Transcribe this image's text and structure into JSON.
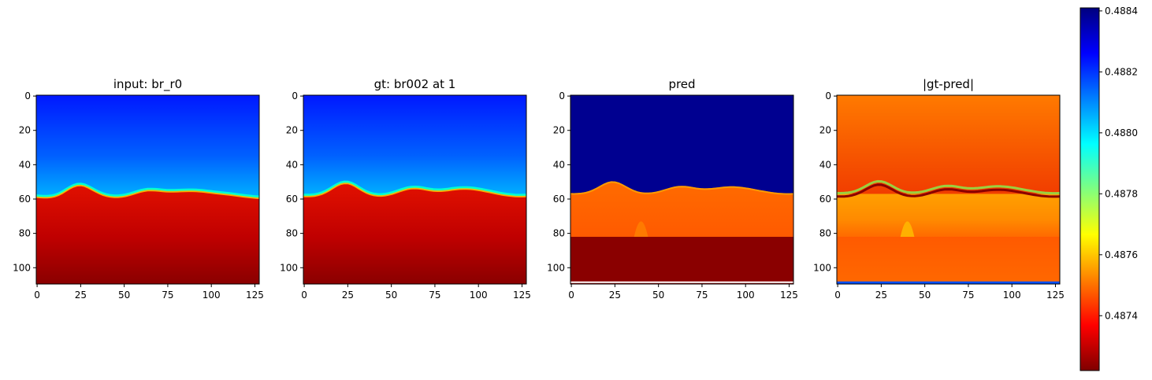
{
  "chart_data": [
    {
      "type": "heatmap",
      "title": "input: br_r0",
      "xlim": [
        0,
        127
      ],
      "ylim": [
        109,
        0
      ],
      "x_ticks": [
        "0",
        "25",
        "50",
        "75",
        "100",
        "125"
      ],
      "y_ticks": [
        "0",
        "20",
        "40",
        "60",
        "80",
        "100"
      ],
      "description_values": {
        "interface_row_approx": 58,
        "top_region_value": 0.4882,
        "bottom_region_value": 0.4873
      }
    },
    {
      "type": "heatmap",
      "title": "gt: br002 at 1",
      "xlim": [
        0,
        127
      ],
      "ylim": [
        109,
        0
      ],
      "x_ticks": [
        "0",
        "25",
        "50",
        "75",
        "100",
        "125"
      ],
      "y_ticks": [
        "0",
        "20",
        "40",
        "60",
        "80",
        "100"
      ],
      "description_values": {
        "interface_row_approx": 57,
        "top_region_value": 0.4882,
        "bottom_region_value": 0.4873
      }
    },
    {
      "type": "heatmap",
      "title": "pred",
      "xlim": [
        0,
        127
      ],
      "ylim": [
        109,
        0
      ],
      "x_ticks": [
        "0",
        "25",
        "50",
        "75",
        "100",
        "125"
      ],
      "y_ticks": [
        "0",
        "20",
        "40",
        "60",
        "80",
        "100"
      ],
      "description_values": {
        "interface_row_approx": 56,
        "top_region_value": 0.4884,
        "middle_region_value": 0.4875,
        "bottom_region_value": 0.4872
      }
    },
    {
      "type": "heatmap",
      "title": "|gt-pred|",
      "xlim": [
        0,
        127
      ],
      "ylim": [
        109,
        0
      ],
      "x_ticks": [
        "0",
        "25",
        "50",
        "75",
        "100",
        "125"
      ],
      "y_ticks": [
        "0",
        "20",
        "40",
        "60",
        "80",
        "100"
      ],
      "description_values": {
        "top_region_value": 0.4875,
        "middle_region_value": 0.4875,
        "bottom_region_value": 0.4874
      }
    }
  ],
  "colorbar": {
    "colormap": "jet",
    "min": 0.48722,
    "max": 0.48841,
    "ticks": [
      "0.4874",
      "0.4876",
      "0.4878",
      "0.4880",
      "0.4882",
      "0.4884"
    ],
    "tick_values": [
      0.4874,
      0.4876,
      0.4878,
      0.488,
      0.4882,
      0.4884
    ]
  }
}
